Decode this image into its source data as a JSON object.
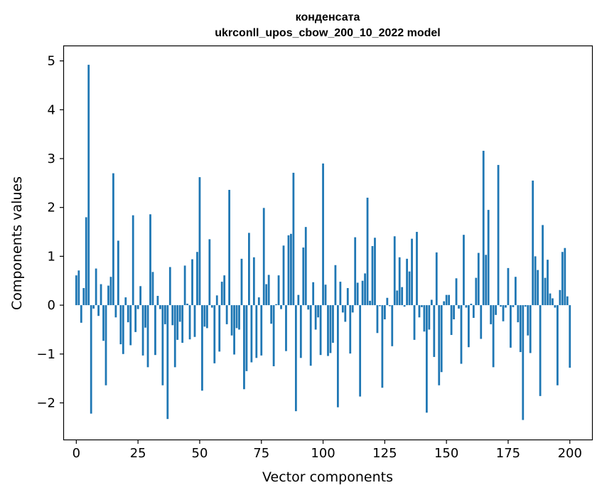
{
  "chart_data": {
    "type": "bar",
    "title": "конденсата",
    "subtitle": "ukrconll_upos_cbow_200_10_2022 model",
    "xlabel": "Vector components",
    "ylabel": "Components values",
    "xlim": [
      -5,
      209
    ],
    "ylim": [
      -2.75,
      5.3
    ],
    "xticks": [
      0,
      25,
      50,
      75,
      100,
      125,
      150,
      175,
      200
    ],
    "yticks": [
      -2,
      -1,
      0,
      1,
      2,
      3,
      4,
      5
    ],
    "ytick_labels": [
      "−2",
      "−1",
      "0",
      "1",
      "2",
      "3",
      "4",
      "5"
    ],
    "bar_color": "#1f77b4",
    "grid": false,
    "values": [
      0.61,
      0.71,
      -0.36,
      0.35,
      1.8,
      4.92,
      -2.22,
      -0.07,
      0.75,
      -0.22,
      0.43,
      -0.73,
      -1.64,
      0.4,
      0.58,
      2.7,
      -0.25,
      1.32,
      -0.8,
      -1.0,
      0.16,
      -0.35,
      -0.82,
      1.84,
      -0.55,
      -0.08,
      0.39,
      -1.03,
      -0.46,
      -1.27,
      1.86,
      0.68,
      -1.02,
      0.19,
      -0.08,
      -1.64,
      -0.39,
      -2.33,
      0.78,
      -0.41,
      -1.27,
      -0.71,
      -0.34,
      -0.77,
      0.81,
      0.03,
      -0.7,
      0.94,
      -0.65,
      1.09,
      2.62,
      -1.75,
      -0.44,
      -0.47,
      1.35,
      -0.05,
      -1.19,
      0.2,
      -0.95,
      0.48,
      0.61,
      -0.39,
      2.36,
      -0.62,
      -1.01,
      -0.47,
      -0.5,
      0.95,
      -1.72,
      -1.35,
      1.48,
      -1.17,
      0.98,
      -1.08,
      0.16,
      -1.03,
      1.99,
      0.43,
      0.62,
      -0.38,
      -1.25,
      0.02,
      0.61,
      -0.08,
      1.22,
      -0.94,
      1.43,
      1.46,
      2.71,
      -2.17,
      0.21,
      -1.08,
      1.18,
      1.6,
      -0.09,
      -1.24,
      0.47,
      -0.5,
      -0.25,
      -1.02,
      2.9,
      0.42,
      -1.04,
      -0.98,
      -0.77,
      0.82,
      -2.09,
      0.48,
      -0.15,
      -0.34,
      0.35,
      -0.99,
      -0.15,
      1.39,
      0.46,
      -1.87,
      0.5,
      0.65,
      2.2,
      0.09,
      1.21,
      1.38,
      -0.57,
      -0.02,
      -1.69,
      -0.29,
      0.15,
      -0.02,
      -0.84,
      1.41,
      0.3,
      0.98,
      0.37,
      -0.03,
      0.95,
      0.69,
      1.36,
      -0.71,
      1.5,
      -0.25,
      -0.04,
      -0.54,
      -2.2,
      -0.5,
      0.11,
      -1.06,
      1.08,
      -1.64,
      -1.37,
      0.08,
      0.21,
      0.21,
      -0.61,
      -0.29,
      0.55,
      -0.07,
      -1.2,
      1.44,
      -0.05,
      -0.86,
      0.03,
      -0.26,
      0.56,
      1.07,
      -0.69,
      3.16,
      1.03,
      1.95,
      -0.39,
      -1.27,
      -0.2,
      2.87,
      -0.03,
      -0.33,
      -0.05,
      0.76,
      -0.87,
      -0.04,
      0.58,
      -0.35,
      -0.96,
      -2.35,
      -0.03,
      -0.62,
      -0.98,
      2.55,
      1.0,
      0.72,
      -1.86,
      1.64,
      0.56,
      0.93,
      0.24,
      0.14,
      -0.05,
      -1.64,
      0.31,
      1.09,
      1.17,
      0.18,
      -1.28
    ]
  }
}
